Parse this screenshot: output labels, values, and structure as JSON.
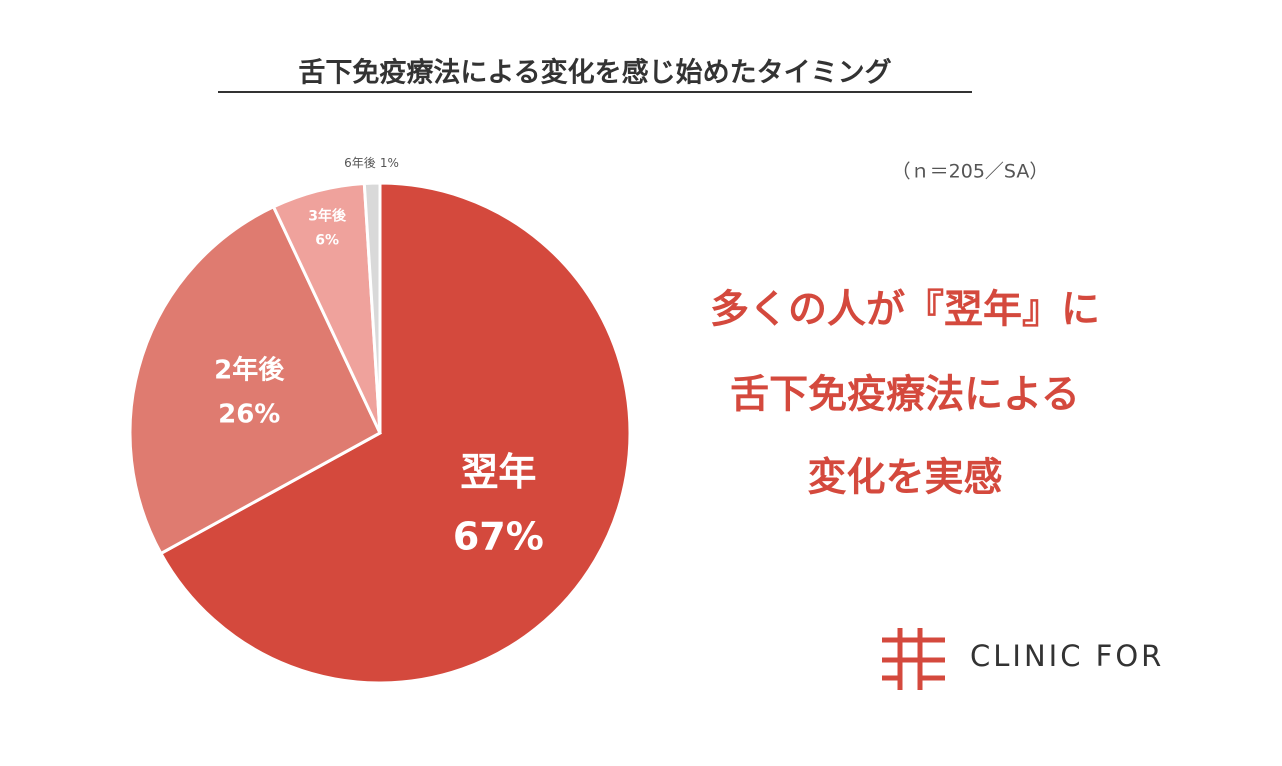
{
  "chart_data": {
    "type": "pie",
    "title": "舌下免疫療法による変化を感じ始めたタイミング",
    "subtitle": "（ｎ＝205／SA）",
    "categories": [
      "翌年",
      "2年後",
      "3年後",
      "6年後"
    ],
    "values": [
      67,
      26,
      6,
      1
    ],
    "value_labels": [
      "67%",
      "26%",
      "6%",
      "1%"
    ],
    "colors": [
      "#d4493d",
      "#df7b70",
      "#efa29c",
      "#d9d9d9"
    ],
    "annotations": [
      "多くの人が『翌年』に",
      "舌下免疫療法による",
      "変化を実感"
    ],
    "brand": "CLINIC FOR"
  }
}
